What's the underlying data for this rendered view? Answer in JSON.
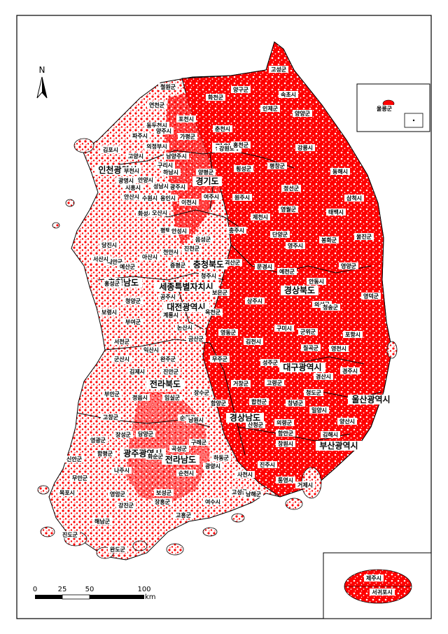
{
  "north_label": "N",
  "scale": {
    "ticks": [
      "0",
      "25",
      "50",
      "100"
    ],
    "unit": "km"
  },
  "colors": {
    "risk": "#ff0000",
    "land": "#ffffff",
    "border": "#000000"
  },
  "provinces": [
    {
      "name": "강원도"
    },
    {
      "name": "경기도"
    },
    {
      "name": "인천광역시"
    },
    {
      "name": "충청북도"
    },
    {
      "name": "충청남도"
    },
    {
      "name": "세종특별자치시"
    },
    {
      "name": "대전광역시"
    },
    {
      "name": "경상북도"
    },
    {
      "name": "대구광역시"
    },
    {
      "name": "울산광역시"
    },
    {
      "name": "전라북도"
    },
    {
      "name": "경상남도"
    },
    {
      "name": "부산광역시"
    },
    {
      "name": "광주광역시"
    },
    {
      "name": "전라남도"
    }
  ],
  "cities": [
    {
      "name": "고성군"
    },
    {
      "name": "철원군"
    },
    {
      "name": "양구군"
    },
    {
      "name": "속초시"
    },
    {
      "name": "화천군"
    },
    {
      "name": "인제군"
    },
    {
      "name": "양양군"
    },
    {
      "name": "연천군"
    },
    {
      "name": "포천시"
    },
    {
      "name": "동두천시"
    },
    {
      "name": "파주시"
    },
    {
      "name": "양주시"
    },
    {
      "name": "춘천시"
    },
    {
      "name": "가평군"
    },
    {
      "name": "의정부시"
    },
    {
      "name": "김포시"
    },
    {
      "name": "고양시"
    },
    {
      "name": "남양주시"
    },
    {
      "name": "구리시"
    },
    {
      "name": "강원도"
    },
    {
      "name": "홍천군"
    },
    {
      "name": "강릉시"
    },
    {
      "name": "부천시"
    },
    {
      "name": "하남시"
    },
    {
      "name": "양평군"
    },
    {
      "name": "횡성군"
    },
    {
      "name": "평창군"
    },
    {
      "name": "동해시"
    },
    {
      "name": "광명시"
    },
    {
      "name": "안양시"
    },
    {
      "name": "시흥시"
    },
    {
      "name": "성남시"
    },
    {
      "name": "광주시"
    },
    {
      "name": "안산시"
    },
    {
      "name": "수원시"
    },
    {
      "name": "용인시"
    },
    {
      "name": "이천시"
    },
    {
      "name": "여주시"
    },
    {
      "name": "원주시"
    },
    {
      "name": "정선군"
    },
    {
      "name": "삼척시"
    },
    {
      "name": "화성시"
    },
    {
      "name": "오산시"
    },
    {
      "name": "영월군"
    },
    {
      "name": "태백시"
    },
    {
      "name": "평택시"
    },
    {
      "name": "안성시"
    },
    {
      "name": "제천시"
    },
    {
      "name": "충주시"
    },
    {
      "name": "단양군"
    },
    {
      "name": "울진군"
    },
    {
      "name": "당진시"
    },
    {
      "name": "음성군"
    },
    {
      "name": "진천군"
    },
    {
      "name": "영주시"
    },
    {
      "name": "봉화군"
    },
    {
      "name": "천안시"
    },
    {
      "name": "아산시"
    },
    {
      "name": "태안군"
    },
    {
      "name": "서산시"
    },
    {
      "name": "괴산군"
    },
    {
      "name": "예산군"
    },
    {
      "name": "증평군"
    },
    {
      "name": "문경시"
    },
    {
      "name": "예천군"
    },
    {
      "name": "영양군"
    },
    {
      "name": "청주시"
    },
    {
      "name": "홍성군"
    },
    {
      "name": "안동시"
    },
    {
      "name": "영덕군"
    },
    {
      "name": "보은군"
    },
    {
      "name": "공주시"
    },
    {
      "name": "청양군"
    },
    {
      "name": "상주시"
    },
    {
      "name": "의성군"
    },
    {
      "name": "보령시"
    },
    {
      "name": "청송군"
    },
    {
      "name": "옥천군"
    },
    {
      "name": "계룡시"
    },
    {
      "name": "논산시"
    },
    {
      "name": "부여군"
    },
    {
      "name": "영동군"
    },
    {
      "name": "금산군"
    },
    {
      "name": "구미시"
    },
    {
      "name": "군위군"
    },
    {
      "name": "포항시"
    },
    {
      "name": "김천시"
    },
    {
      "name": "칠곡군"
    },
    {
      "name": "서천군"
    },
    {
      "name": "익산시"
    },
    {
      "name": "영천시"
    },
    {
      "name": "군산시"
    },
    {
      "name": "완주군"
    },
    {
      "name": "무주군"
    },
    {
      "name": "성주군"
    },
    {
      "name": "경주시"
    },
    {
      "name": "김제시"
    },
    {
      "name": "진안군"
    },
    {
      "name": "경산시"
    },
    {
      "name": "고령군"
    },
    {
      "name": "거창군"
    },
    {
      "name": "부안군"
    },
    {
      "name": "정읍시"
    },
    {
      "name": "임실군"
    },
    {
      "name": "장수군"
    },
    {
      "name": "청도군"
    },
    {
      "name": "고창군"
    },
    {
      "name": "순창군"
    },
    {
      "name": "함양군"
    },
    {
      "name": "합천군"
    },
    {
      "name": "창녕군"
    },
    {
      "name": "밀양시"
    },
    {
      "name": "양산시"
    },
    {
      "name": "남원시"
    },
    {
      "name": "산청군"
    },
    {
      "name": "영광군"
    },
    {
      "name": "장성군"
    },
    {
      "name": "담양군"
    },
    {
      "name": "의령군"
    },
    {
      "name": "김해시"
    },
    {
      "name": "곡성군"
    },
    {
      "name": "구례군"
    },
    {
      "name": "함안군"
    },
    {
      "name": "창원시"
    },
    {
      "name": "함평군"
    },
    {
      "name": "신안군"
    },
    {
      "name": "화순군"
    },
    {
      "name": "하동군"
    },
    {
      "name": "진주시"
    },
    {
      "name": "나주시"
    },
    {
      "name": "광양시"
    },
    {
      "name": "사천시"
    },
    {
      "name": "무안군"
    },
    {
      "name": "순천시"
    },
    {
      "name": "고성군"
    },
    {
      "name": "영암군"
    },
    {
      "name": "보성군"
    },
    {
      "name": "통영시"
    },
    {
      "name": "거제시"
    },
    {
      "name": "목포시"
    },
    {
      "name": "남해군"
    },
    {
      "name": "강진군"
    },
    {
      "name": "장흥군"
    },
    {
      "name": "여수시"
    },
    {
      "name": "해남군"
    },
    {
      "name": "고흥군"
    },
    {
      "name": "진도군"
    },
    {
      "name": "완도군"
    },
    {
      "name": "울릉군"
    },
    {
      "name": "제주시"
    },
    {
      "name": "서귀포시"
    }
  ]
}
